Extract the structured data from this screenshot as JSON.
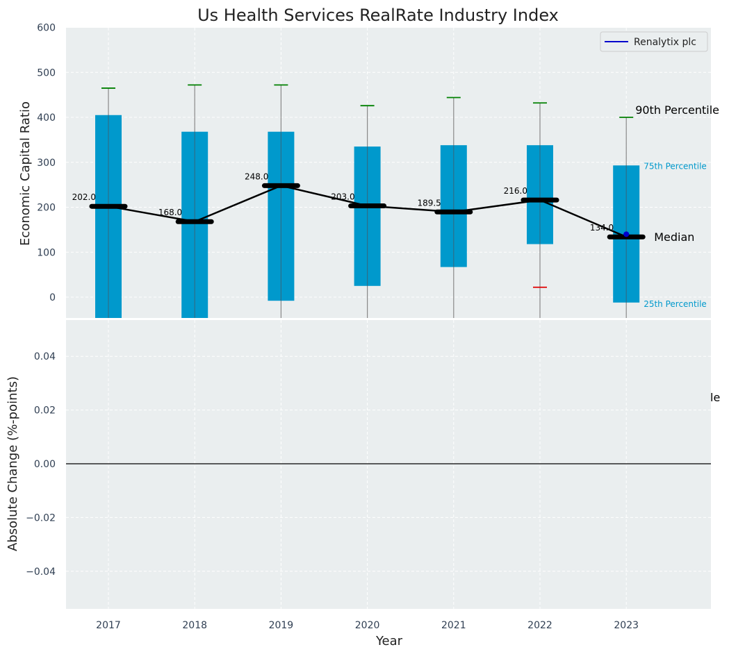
{
  "chart_data": [
    {
      "type": "bar",
      "title": "Us Health Services RealRate Industry Index",
      "ylabel": "Economic Capital Ratio",
      "ylim": [
        -50,
        600
      ],
      "yticks": [
        0,
        100,
        200,
        300,
        400,
        500,
        600
      ],
      "categories": [
        "2017",
        "2018",
        "2019",
        "2020",
        "2021",
        "2022",
        "2023"
      ],
      "p25": [
        -50,
        -50,
        -8,
        25,
        67,
        118,
        -12
      ],
      "p75": [
        405,
        368,
        368,
        335,
        338,
        338,
        293
      ],
      "p90": [
        465,
        472,
        472,
        426,
        444,
        432,
        400
      ],
      "p10": [
        null,
        null,
        null,
        null,
        null,
        22,
        null
      ],
      "median": [
        202.0,
        168.0,
        248.0,
        203.0,
        189.5,
        216.0,
        134.0
      ],
      "median_labels": [
        "202.0",
        "168.0",
        "248.0",
        "203.0",
        "189.5",
        "216.0",
        "134.0"
      ],
      "company_series": {
        "name": "Renalytix plc",
        "x": "2023",
        "value": 140
      },
      "annotations": {
        "p90": "90th Percentile",
        "p75": "75th Percentile",
        "median": "Median",
        "p25": "25th Percentile"
      },
      "grid": true,
      "legend": "top-right"
    },
    {
      "type": "line",
      "ylabel": "Absolute Change (%-points)",
      "xlabel": "Year",
      "ylim": [
        -0.055,
        0.055
      ],
      "yticks": [
        "0.04",
        "0.02",
        "0.00",
        "−0.02",
        "−0.04"
      ],
      "ytick_values": [
        0.04,
        0.02,
        0.0,
        -0.02,
        -0.04
      ],
      "categories": [
        "2017",
        "2018",
        "2019",
        "2020",
        "2021",
        "2022",
        "2023"
      ],
      "series": [],
      "zero_line": true,
      "partial_label": "le",
      "grid": true
    }
  ],
  "colors": {
    "bar": "#0099cc",
    "p90_cap": "#008000",
    "p10_cap": "#e00000",
    "median_line": "#000000",
    "company": "#0000cc",
    "panel_bg": "#eaeeef",
    "grid": "#ffffff",
    "tick_text": "#2f3e52",
    "annotation_small": "#0099cc"
  }
}
